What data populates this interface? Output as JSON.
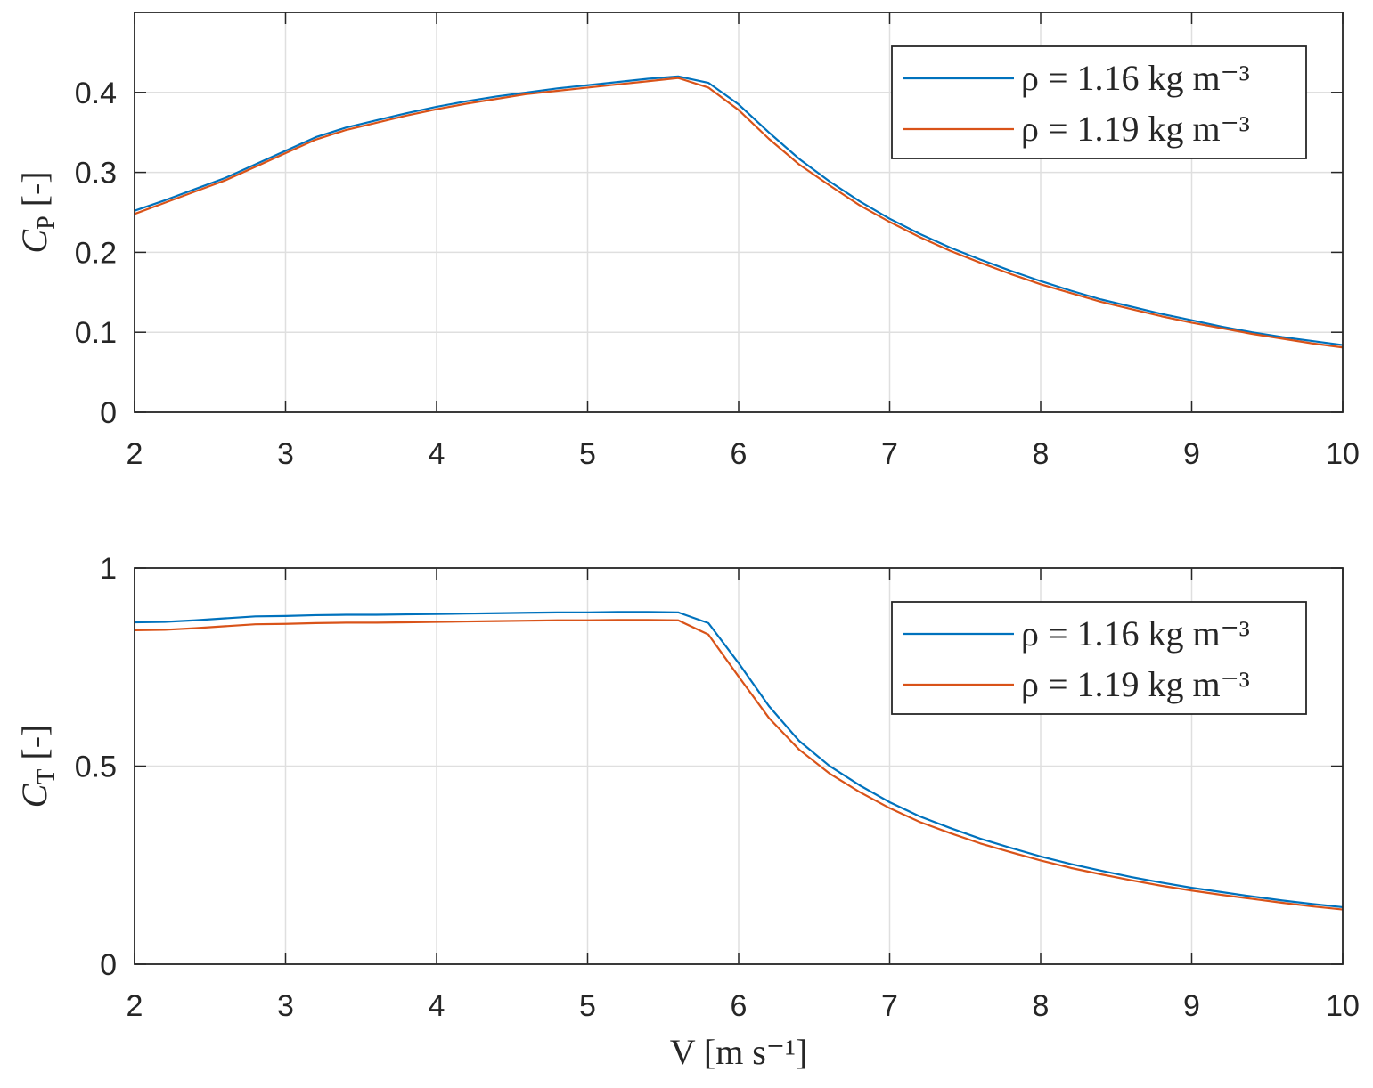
{
  "chart_data": [
    {
      "type": "line",
      "ylabel": {
        "symbol": "C",
        "subscript": "P",
        "unit": "[-]"
      },
      "x": [
        2,
        2.2,
        2.4,
        2.6,
        2.8,
        3,
        3.2,
        3.4,
        3.6,
        3.8,
        4,
        4.2,
        4.4,
        4.6,
        4.8,
        5,
        5.2,
        5.4,
        5.6,
        5.8,
        6,
        6.2,
        6.4,
        6.6,
        6.8,
        7,
        7.2,
        7.4,
        7.6,
        7.8,
        8,
        8.2,
        8.4,
        8.6,
        8.8,
        9,
        9.2,
        9.4,
        9.6,
        9.8,
        10
      ],
      "series": [
        {
          "name": "ρ = 1.16 kg m⁻³",
          "color": "#0072bd",
          "values": [
            0.252,
            0.265,
            0.279,
            0.293,
            0.31,
            0.327,
            0.344,
            0.356,
            0.365,
            0.374,
            0.382,
            0.389,
            0.395,
            0.4,
            0.405,
            0.409,
            0.413,
            0.417,
            0.42,
            0.412,
            0.385,
            0.35,
            0.317,
            0.289,
            0.264,
            0.242,
            0.223,
            0.206,
            0.191,
            0.177,
            0.164,
            0.152,
            0.141,
            0.132,
            0.123,
            0.115,
            0.107,
            0.1,
            0.094,
            0.089,
            0.084
          ]
        },
        {
          "name": "ρ = 1.19 kg m⁻³",
          "color": "#d95319",
          "values": [
            0.248,
            0.262,
            0.276,
            0.29,
            0.307,
            0.324,
            0.341,
            0.353,
            0.362,
            0.371,
            0.379,
            0.386,
            0.392,
            0.398,
            0.402,
            0.406,
            0.41,
            0.414,
            0.418,
            0.406,
            0.378,
            0.342,
            0.31,
            0.284,
            0.259,
            0.238,
            0.219,
            0.202,
            0.187,
            0.173,
            0.16,
            0.149,
            0.138,
            0.129,
            0.12,
            0.112,
            0.105,
            0.098,
            0.092,
            0.086,
            0.081
          ]
        }
      ],
      "xlim": [
        2,
        10
      ],
      "xticks": [
        2,
        3,
        4,
        5,
        6,
        7,
        8,
        9,
        10
      ],
      "ylim": [
        0,
        0.5
      ],
      "yticks": [
        0,
        0.1,
        0.2,
        0.3,
        0.4
      ],
      "grid": true,
      "legend": "upper-right"
    },
    {
      "type": "line",
      "ylabel": {
        "symbol": "C",
        "subscript": "T",
        "unit": "[-]"
      },
      "xlabel": "V [m s⁻¹]",
      "x": [
        2,
        2.2,
        2.4,
        2.6,
        2.8,
        3,
        3.2,
        3.4,
        3.6,
        3.8,
        4,
        4.2,
        4.4,
        4.6,
        4.8,
        5,
        5.2,
        5.4,
        5.6,
        5.8,
        6,
        6.2,
        6.4,
        6.6,
        6.8,
        7,
        7.2,
        7.4,
        7.6,
        7.8,
        8,
        8.2,
        8.4,
        8.6,
        8.8,
        9,
        9.2,
        9.4,
        9.6,
        9.8,
        10
      ],
      "series": [
        {
          "name": "ρ = 1.16 kg m⁻³",
          "color": "#0072bd",
          "values": [
            0.863,
            0.864,
            0.868,
            0.873,
            0.878,
            0.879,
            0.881,
            0.882,
            0.882,
            0.883,
            0.884,
            0.885,
            0.886,
            0.887,
            0.888,
            0.888,
            0.889,
            0.889,
            0.888,
            0.861,
            0.76,
            0.652,
            0.564,
            0.501,
            0.452,
            0.409,
            0.373,
            0.344,
            0.317,
            0.294,
            0.272,
            0.253,
            0.236,
            0.22,
            0.206,
            0.193,
            0.182,
            0.171,
            0.161,
            0.152,
            0.144
          ]
        },
        {
          "name": "ρ = 1.19 kg m⁻³",
          "color": "#d95319",
          "values": [
            0.843,
            0.844,
            0.848,
            0.853,
            0.858,
            0.859,
            0.861,
            0.862,
            0.862,
            0.863,
            0.864,
            0.865,
            0.866,
            0.867,
            0.868,
            0.868,
            0.869,
            0.869,
            0.868,
            0.832,
            0.726,
            0.622,
            0.542,
            0.482,
            0.435,
            0.394,
            0.359,
            0.331,
            0.305,
            0.283,
            0.262,
            0.243,
            0.227,
            0.212,
            0.198,
            0.186,
            0.175,
            0.165,
            0.155,
            0.146,
            0.138
          ]
        }
      ],
      "xlim": [
        2,
        10
      ],
      "xticks": [
        2,
        3,
        4,
        5,
        6,
        7,
        8,
        9,
        10
      ],
      "ylim": [
        0,
        1
      ],
      "yticks": [
        0,
        0.5,
        1
      ],
      "grid": true,
      "legend": "upper-right"
    }
  ]
}
